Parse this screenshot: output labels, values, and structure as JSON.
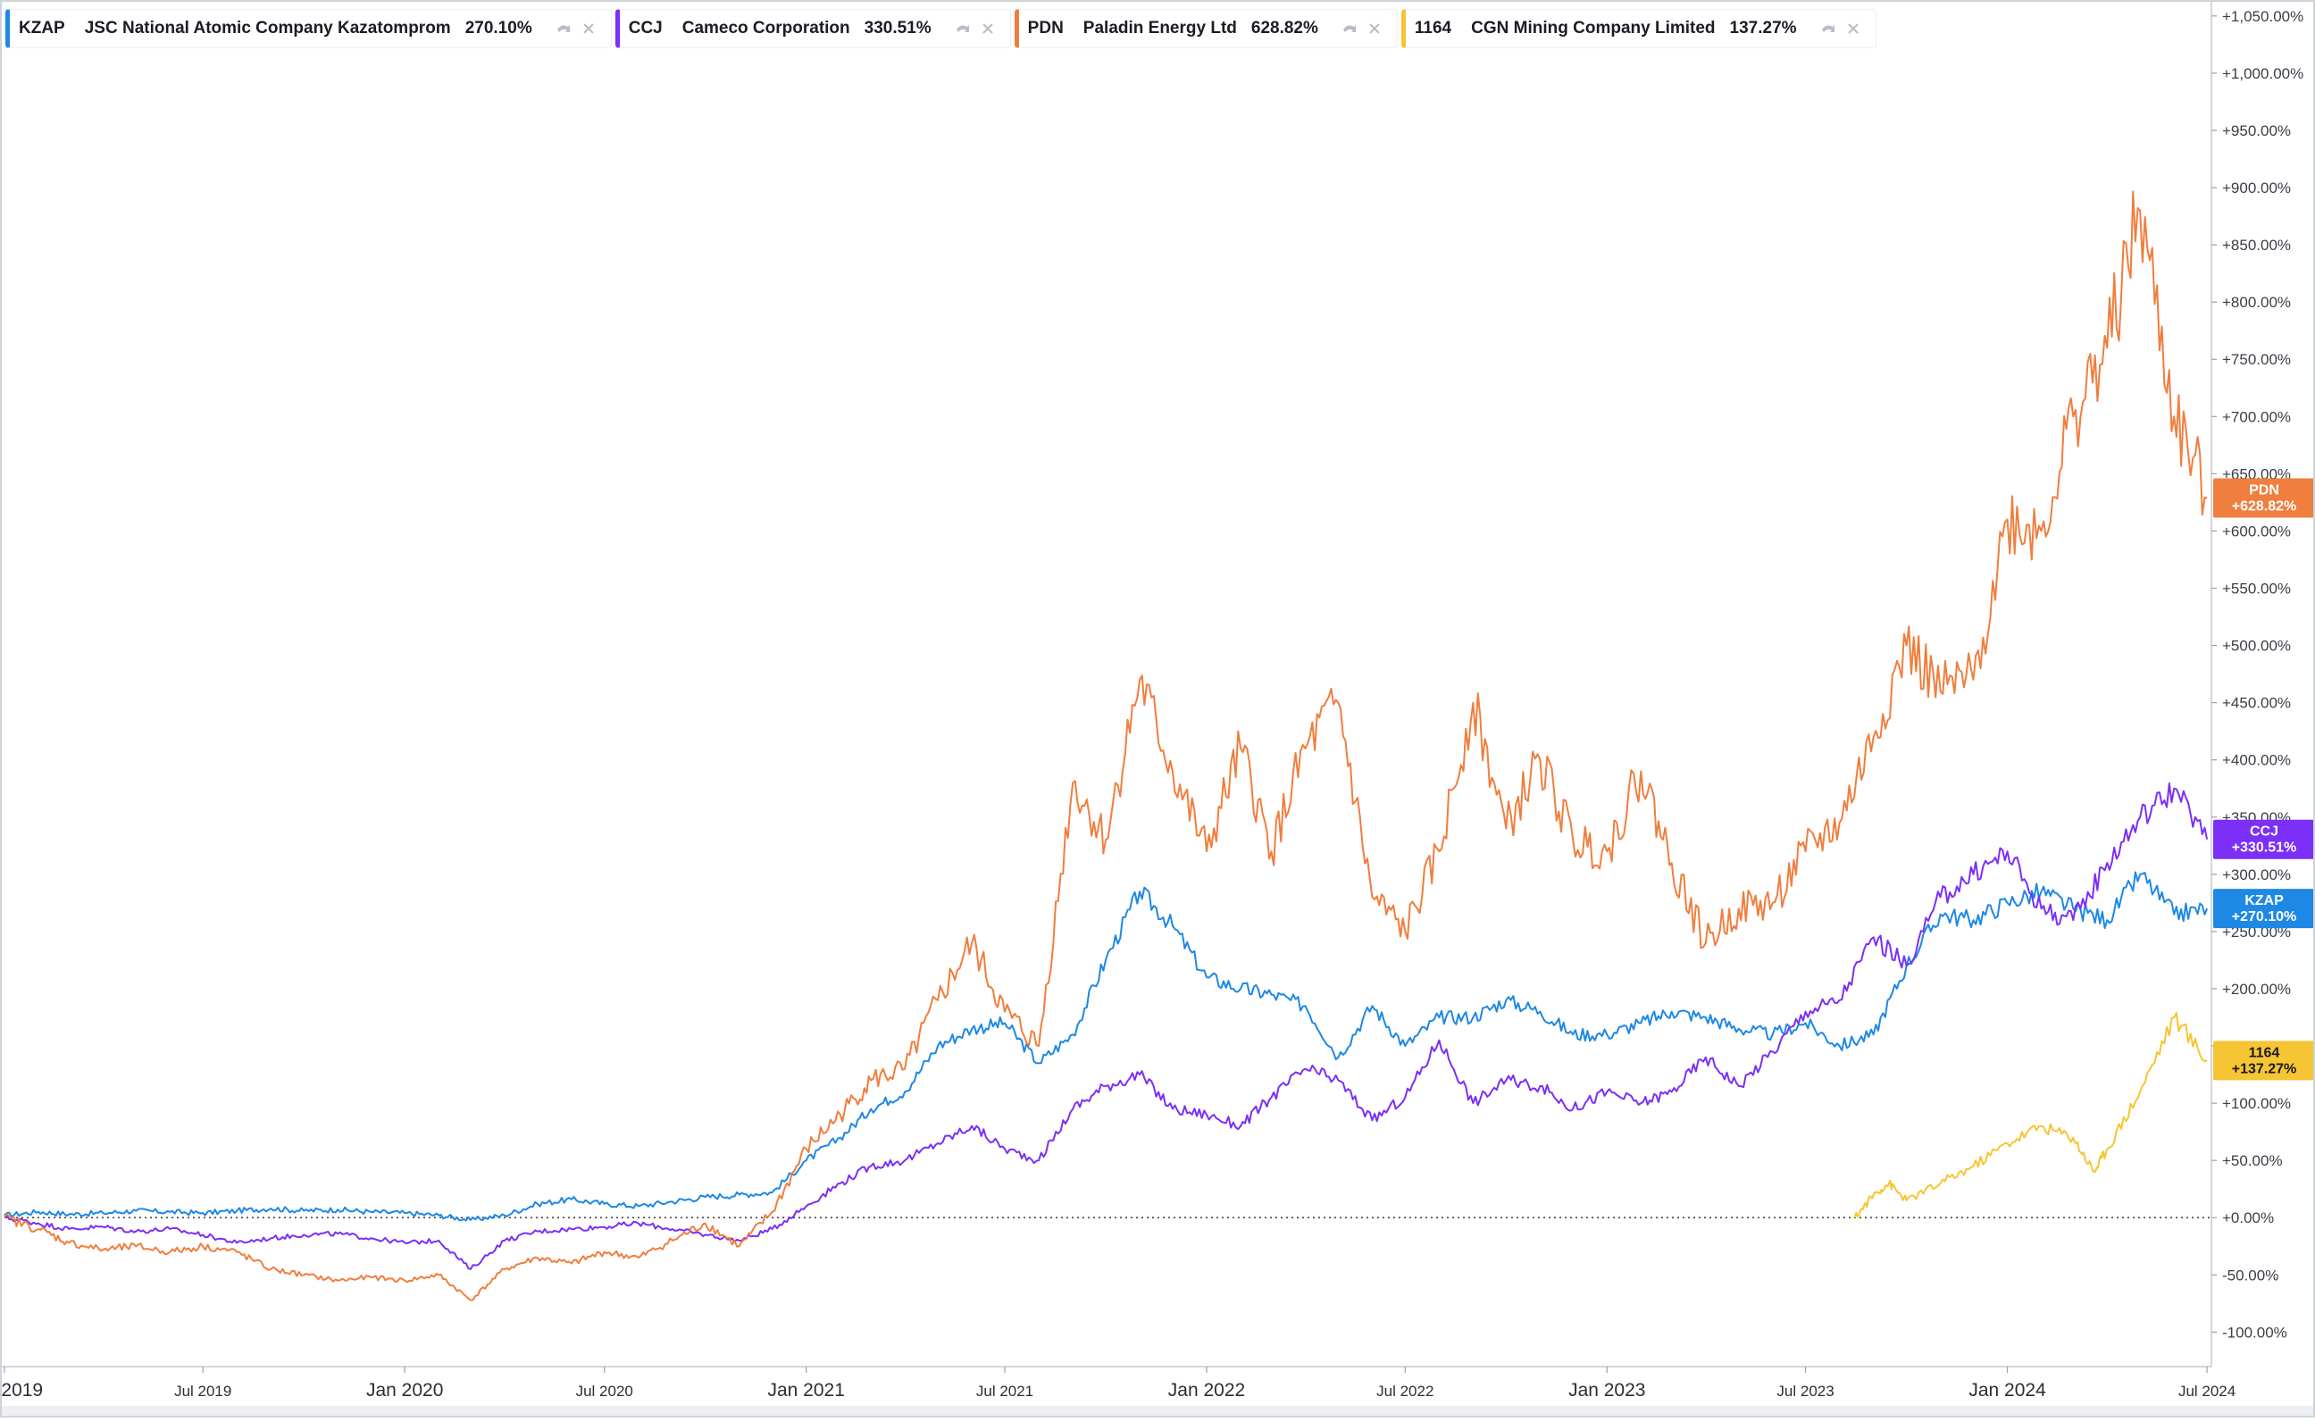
{
  "legend": [
    {
      "ticker": "KZAP",
      "name": "JSC National Atomic Company Kazatomprom",
      "change": "270.10%",
      "color": "#1e88e5",
      "icons": [
        "hide-icon",
        "close-icon"
      ]
    },
    {
      "ticker": "CCJ",
      "name": "Cameco Corporation",
      "change": "330.51%",
      "color": "#7b2ff7",
      "icons": [
        "hide-icon",
        "close-icon"
      ]
    },
    {
      "ticker": "PDN",
      "name": "Paladin Energy Ltd",
      "change": "628.82%",
      "color": "#f07e3e",
      "icons": [
        "hide-icon",
        "close-icon"
      ]
    },
    {
      "ticker": "1164",
      "name": "CGN Mining Company Limited",
      "change": "137.27%",
      "color": "#f6c533",
      "icons": [
        "hide-icon",
        "close-icon"
      ]
    }
  ],
  "chart_data": {
    "type": "line",
    "x_unit": "date",
    "xlim": [
      "2018-12-28",
      "2024-07-05"
    ],
    "ylim": [
      -113,
      1053
    ],
    "y_tick_step": 50,
    "y_tick_format": "+N.00%",
    "x_tick_labels": [
      "Jan 2019",
      "Jul 2019",
      "Jan 2020",
      "Jul 2020",
      "Jan 2021",
      "Jul 2021",
      "Jan 2022",
      "Jul 2022",
      "Jan 2023",
      "Jul 2023",
      "Jan 2024",
      "Jul 2024"
    ],
    "zero_line": true,
    "grid": false,
    "series": [
      {
        "name": "KZAP",
        "color": "#1e88e5",
        "last_label": "+270.10%",
        "points": [
          [
            "2019-01-01",
            2
          ],
          [
            "2019-02-01",
            5
          ],
          [
            "2019-03-01",
            3
          ],
          [
            "2019-04-01",
            4
          ],
          [
            "2019-05-01",
            6
          ],
          [
            "2019-06-01",
            5
          ],
          [
            "2019-07-01",
            4
          ],
          [
            "2019-08-01",
            6
          ],
          [
            "2019-09-01",
            8
          ],
          [
            "2019-10-01",
            6
          ],
          [
            "2019-11-01",
            7
          ],
          [
            "2019-12-01",
            5
          ],
          [
            "2020-01-01",
            4
          ],
          [
            "2020-02-01",
            2
          ],
          [
            "2020-03-01",
            -2
          ],
          [
            "2020-04-01",
            2
          ],
          [
            "2020-05-01",
            12
          ],
          [
            "2020-06-01",
            16
          ],
          [
            "2020-07-01",
            12
          ],
          [
            "2020-08-01",
            10
          ],
          [
            "2020-09-01",
            14
          ],
          [
            "2020-10-01",
            18
          ],
          [
            "2020-11-01",
            20
          ],
          [
            "2020-12-01",
            22
          ],
          [
            "2021-01-01",
            50
          ],
          [
            "2021-02-01",
            70
          ],
          [
            "2021-03-01",
            95
          ],
          [
            "2021-04-01",
            110
          ],
          [
            "2021-05-01",
            150
          ],
          [
            "2021-06-01",
            165
          ],
          [
            "2021-07-01",
            170
          ],
          [
            "2021-08-01",
            135
          ],
          [
            "2021-09-01",
            160
          ],
          [
            "2021-10-01",
            225
          ],
          [
            "2021-11-01",
            285
          ],
          [
            "2021-12-01",
            255
          ],
          [
            "2022-01-01",
            210
          ],
          [
            "2022-02-01",
            200
          ],
          [
            "2022-03-01",
            195
          ],
          [
            "2022-04-01",
            185
          ],
          [
            "2022-05-01",
            140
          ],
          [
            "2022-06-01",
            185
          ],
          [
            "2022-07-01",
            150
          ],
          [
            "2022-08-01",
            175
          ],
          [
            "2022-09-01",
            175
          ],
          [
            "2022-10-01",
            190
          ],
          [
            "2022-11-01",
            180
          ],
          [
            "2022-12-01",
            160
          ],
          [
            "2023-01-01",
            160
          ],
          [
            "2023-02-01",
            170
          ],
          [
            "2023-03-01",
            180
          ],
          [
            "2023-04-01",
            175
          ],
          [
            "2023-05-01",
            165
          ],
          [
            "2023-06-01",
            160
          ],
          [
            "2023-07-01",
            170
          ],
          [
            "2023-08-01",
            150
          ],
          [
            "2023-09-01",
            160
          ],
          [
            "2023-10-01",
            220
          ],
          [
            "2023-11-01",
            265
          ],
          [
            "2023-12-01",
            260
          ],
          [
            "2024-01-01",
            275
          ],
          [
            "2024-02-01",
            285
          ],
          [
            "2024-03-01",
            270
          ],
          [
            "2024-04-01",
            260
          ],
          [
            "2024-05-01",
            300
          ],
          [
            "2024-06-01",
            265
          ],
          [
            "2024-07-01",
            270.1
          ]
        ]
      },
      {
        "name": "CCJ",
        "color": "#7b2ff7",
        "last_label": "+330.51%",
        "points": [
          [
            "2019-01-01",
            0
          ],
          [
            "2019-02-01",
            -5
          ],
          [
            "2019-03-01",
            -10
          ],
          [
            "2019-04-01",
            -8
          ],
          [
            "2019-05-01",
            -12
          ],
          [
            "2019-06-01",
            -10
          ],
          [
            "2019-07-01",
            -15
          ],
          [
            "2019-08-01",
            -22
          ],
          [
            "2019-09-01",
            -18
          ],
          [
            "2019-10-01",
            -15
          ],
          [
            "2019-11-01",
            -14
          ],
          [
            "2019-12-01",
            -18
          ],
          [
            "2020-01-01",
            -22
          ],
          [
            "2020-02-01",
            -20
          ],
          [
            "2020-03-01",
            -45
          ],
          [
            "2020-04-01",
            -20
          ],
          [
            "2020-05-01",
            -12
          ],
          [
            "2020-06-01",
            -10
          ],
          [
            "2020-07-01",
            -8
          ],
          [
            "2020-08-01",
            -5
          ],
          [
            "2020-09-01",
            -10
          ],
          [
            "2020-10-01",
            -15
          ],
          [
            "2020-11-01",
            -20
          ],
          [
            "2020-12-01",
            -10
          ],
          [
            "2021-01-01",
            10
          ],
          [
            "2021-02-01",
            30
          ],
          [
            "2021-03-01",
            45
          ],
          [
            "2021-04-01",
            50
          ],
          [
            "2021-05-01",
            65
          ],
          [
            "2021-06-01",
            80
          ],
          [
            "2021-07-01",
            60
          ],
          [
            "2021-08-01",
            50
          ],
          [
            "2021-09-01",
            95
          ],
          [
            "2021-10-01",
            115
          ],
          [
            "2021-11-01",
            125
          ],
          [
            "2021-12-01",
            95
          ],
          [
            "2022-01-01",
            90
          ],
          [
            "2022-02-01",
            80
          ],
          [
            "2022-03-01",
            105
          ],
          [
            "2022-04-01",
            130
          ],
          [
            "2022-05-01",
            120
          ],
          [
            "2022-06-01",
            85
          ],
          [
            "2022-07-01",
            105
          ],
          [
            "2022-08-01",
            155
          ],
          [
            "2022-09-01",
            100
          ],
          [
            "2022-10-01",
            120
          ],
          [
            "2022-11-01",
            115
          ],
          [
            "2022-12-01",
            95
          ],
          [
            "2023-01-01",
            110
          ],
          [
            "2023-02-01",
            100
          ],
          [
            "2023-03-01",
            110
          ],
          [
            "2023-04-01",
            140
          ],
          [
            "2023-05-01",
            115
          ],
          [
            "2023-06-01",
            145
          ],
          [
            "2023-07-01",
            180
          ],
          [
            "2023-08-01",
            190
          ],
          [
            "2023-09-01",
            245
          ],
          [
            "2023-10-01",
            220
          ],
          [
            "2023-11-01",
            280
          ],
          [
            "2023-12-01",
            300
          ],
          [
            "2024-01-01",
            320
          ],
          [
            "2024-02-01",
            270
          ],
          [
            "2024-03-01",
            260
          ],
          [
            "2024-04-01",
            310
          ],
          [
            "2024-05-01",
            350
          ],
          [
            "2024-06-01",
            375
          ],
          [
            "2024-07-01",
            330.51
          ]
        ]
      },
      {
        "name": "PDN",
        "color": "#f07e3e",
        "last_label": "+628.82%",
        "points": [
          [
            "2019-01-01",
            0
          ],
          [
            "2019-02-01",
            -10
          ],
          [
            "2019-03-01",
            -22
          ],
          [
            "2019-04-01",
            -28
          ],
          [
            "2019-05-01",
            -25
          ],
          [
            "2019-06-01",
            -30
          ],
          [
            "2019-07-01",
            -25
          ],
          [
            "2019-08-01",
            -30
          ],
          [
            "2019-09-01",
            -45
          ],
          [
            "2019-10-01",
            -50
          ],
          [
            "2019-11-01",
            -55
          ],
          [
            "2019-12-01",
            -52
          ],
          [
            "2020-01-01",
            -55
          ],
          [
            "2020-02-01",
            -50
          ],
          [
            "2020-03-01",
            -72
          ],
          [
            "2020-04-01",
            -45
          ],
          [
            "2020-05-01",
            -35
          ],
          [
            "2020-06-01",
            -40
          ],
          [
            "2020-07-01",
            -30
          ],
          [
            "2020-08-01",
            -35
          ],
          [
            "2020-09-01",
            -20
          ],
          [
            "2020-10-01",
            -5
          ],
          [
            "2020-11-01",
            -25
          ],
          [
            "2020-12-01",
            5
          ],
          [
            "2021-01-01",
            60
          ],
          [
            "2021-02-01",
            90
          ],
          [
            "2021-03-01",
            120
          ],
          [
            "2021-04-01",
            130
          ],
          [
            "2021-05-01",
            190
          ],
          [
            "2021-06-01",
            240
          ],
          [
            "2021-07-01",
            180
          ],
          [
            "2021-08-01",
            150
          ],
          [
            "2021-09-01",
            380
          ],
          [
            "2021-10-01",
            330
          ],
          [
            "2021-11-01",
            470
          ],
          [
            "2021-12-01",
            390
          ],
          [
            "2022-01-01",
            320
          ],
          [
            "2022-02-01",
            410
          ],
          [
            "2022-03-01",
            320
          ],
          [
            "2022-04-01",
            410
          ],
          [
            "2022-05-01",
            450
          ],
          [
            "2022-06-01",
            280
          ],
          [
            "2022-07-01",
            250
          ],
          [
            "2022-08-01",
            320
          ],
          [
            "2022-09-01",
            450
          ],
          [
            "2022-10-01",
            340
          ],
          [
            "2022-11-01",
            400
          ],
          [
            "2022-12-01",
            330
          ],
          [
            "2023-01-01",
            320
          ],
          [
            "2023-02-01",
            390
          ],
          [
            "2023-03-01",
            310
          ],
          [
            "2023-04-01",
            240
          ],
          [
            "2023-05-01",
            270
          ],
          [
            "2023-06-01",
            275
          ],
          [
            "2023-07-01",
            320
          ],
          [
            "2023-08-01",
            345
          ],
          [
            "2023-09-01",
            420
          ],
          [
            "2023-10-01",
            500
          ],
          [
            "2023-11-01",
            460
          ],
          [
            "2023-12-01",
            470
          ],
          [
            "2024-01-01",
            610
          ],
          [
            "2024-02-01",
            600
          ],
          [
            "2024-03-01",
            700
          ],
          [
            "2024-04-01",
            760
          ],
          [
            "2024-05-01",
            880
          ],
          [
            "2024-06-01",
            700
          ],
          [
            "2024-07-01",
            628.82
          ]
        ]
      },
      {
        "name": "1164",
        "color": "#f6c533",
        "last_label": "+137.27%",
        "points": [
          [
            "2023-08-15",
            0
          ],
          [
            "2023-09-01",
            20
          ],
          [
            "2023-09-15",
            30
          ],
          [
            "2023-10-01",
            15
          ],
          [
            "2023-11-01",
            30
          ],
          [
            "2023-12-01",
            45
          ],
          [
            "2024-01-01",
            65
          ],
          [
            "2024-02-01",
            80
          ],
          [
            "2024-03-01",
            70
          ],
          [
            "2024-03-20",
            40
          ],
          [
            "2024-04-01",
            60
          ],
          [
            "2024-05-01",
            110
          ],
          [
            "2024-06-01",
            175
          ],
          [
            "2024-07-01",
            137.27
          ]
        ]
      }
    ]
  }
}
